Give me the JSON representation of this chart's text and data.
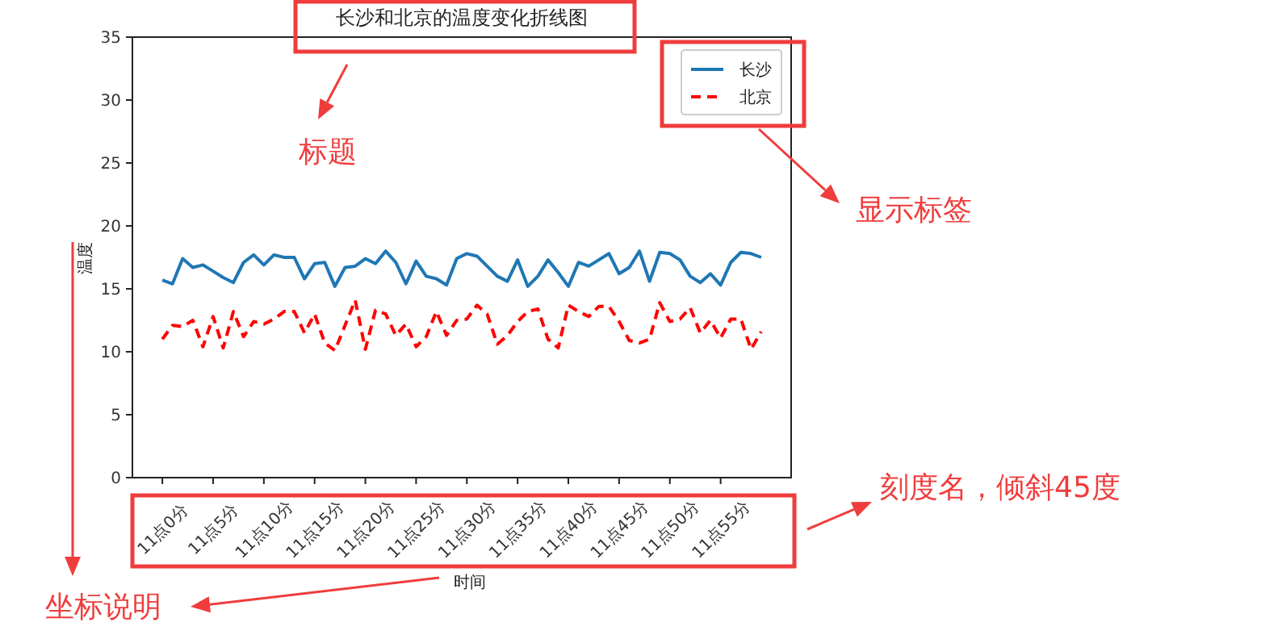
{
  "chart_data": {
    "type": "line",
    "title": "长沙和北京的温度变化折线图",
    "xlabel": "时间",
    "ylabel": "温度",
    "categories": [
      "11点0分",
      null,
      null,
      null,
      null,
      "11点5分",
      null,
      null,
      null,
      null,
      "11点10分",
      null,
      null,
      null,
      null,
      "11点15分",
      null,
      null,
      null,
      null,
      "11点20分",
      null,
      null,
      null,
      null,
      "11点25分",
      null,
      null,
      null,
      null,
      "11点30分",
      null,
      null,
      null,
      null,
      "11点35分",
      null,
      null,
      null,
      null,
      "11点40分",
      null,
      null,
      null,
      null,
      "11点45分",
      null,
      null,
      null,
      null,
      "11点50分",
      null,
      null,
      null,
      null,
      "11点55分",
      null,
      null,
      null,
      null
    ],
    "series": [
      {
        "name": "长沙",
        "color": "#1f77b4",
        "line_style": "solid",
        "values": [
          15.7,
          15.4,
          17.4,
          16.7,
          16.9,
          16.4,
          15.9,
          15.5,
          17.1,
          17.7,
          16.9,
          17.7,
          17.5,
          17.5,
          15.8,
          17.0,
          17.1,
          15.2,
          16.7,
          16.8,
          17.4,
          17.0,
          18.0,
          17.1,
          15.4,
          17.2,
          16.0,
          15.8,
          15.3,
          17.4,
          17.8,
          17.6,
          16.8,
          16.0,
          15.6,
          17.3,
          15.2,
          16.0,
          17.3,
          16.3,
          15.2,
          17.1,
          16.8,
          17.3,
          17.8,
          16.2,
          16.7,
          18.0,
          15.6,
          17.9,
          17.8,
          17.3,
          16.0,
          15.5,
          16.2,
          15.3,
          17.1,
          17.9,
          17.8,
          17.5
        ]
      },
      {
        "name": "北京",
        "color": "#ff0000",
        "line_style": "dashed",
        "values": [
          11.0,
          12.1,
          12.0,
          12.5,
          10.4,
          12.8,
          10.3,
          13.2,
          11.2,
          12.4,
          12.2,
          12.6,
          13.2,
          13.2,
          11.5,
          13.0,
          10.7,
          10.1,
          12.1,
          14.1,
          10.2,
          13.3,
          13.0,
          11.3,
          12.2,
          10.4,
          11.2,
          13.2,
          11.3,
          12.5,
          12.6,
          13.7,
          13.0,
          10.6,
          11.3,
          12.4,
          13.2,
          13.4,
          11.0,
          10.3,
          13.7,
          13.2,
          12.8,
          13.6,
          13.6,
          12.4,
          10.9,
          10.7,
          11.0,
          13.9,
          12.4,
          12.6,
          13.5,
          11.5,
          12.5,
          11.1,
          12.6,
          12.6,
          10.2,
          11.6
        ]
      }
    ],
    "ylim": [
      0,
      35
    ],
    "yticks": [
      0,
      5,
      10,
      15,
      20,
      25,
      30,
      35
    ],
    "legend": "top right",
    "grid": false,
    "annotations": [
      "标题",
      "显示标签",
      "刻度名，倾斜45度",
      "坐标说明"
    ]
  }
}
